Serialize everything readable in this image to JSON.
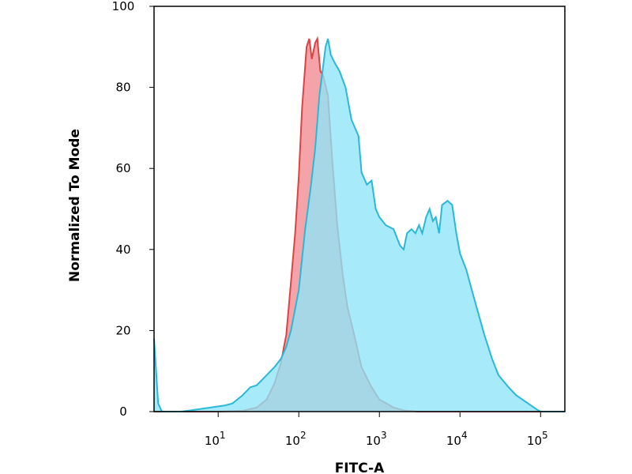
{
  "chart_data": {
    "type": "area",
    "title": "",
    "xlabel": "FITC-A",
    "ylabel": "Normalized To Mode",
    "xscale": "log",
    "xlim": [
      1.6,
      200000
    ],
    "ylim": [
      0,
      100
    ],
    "yticks": [
      {
        "value": 0,
        "label": "0"
      },
      {
        "value": 20,
        "label": "20"
      },
      {
        "value": 40,
        "label": "40"
      },
      {
        "value": 60,
        "label": "60"
      },
      {
        "value": 80,
        "label": "80"
      },
      {
        "value": 100,
        "label": "100"
      }
    ],
    "xticks": [
      {
        "value": 10,
        "base": "10",
        "exp": "1"
      },
      {
        "value": 100,
        "base": "10",
        "exp": "2"
      },
      {
        "value": 1000,
        "base": "10",
        "exp": "3"
      },
      {
        "value": 10000,
        "base": "10",
        "exp": "4"
      },
      {
        "value": 100000,
        "base": "10",
        "exp": "5"
      }
    ],
    "grid": false,
    "legend": "none",
    "series": [
      {
        "color_fill": "#f4a4a8",
        "color_line": "#d94545",
        "points": [
          [
            1.6,
            0
          ],
          [
            10,
            0
          ],
          [
            20,
            0.2
          ],
          [
            30,
            1
          ],
          [
            40,
            3
          ],
          [
            50,
            7
          ],
          [
            60,
            12
          ],
          [
            70,
            19
          ],
          [
            80,
            32
          ],
          [
            90,
            44
          ],
          [
            100,
            58
          ],
          [
            110,
            75
          ],
          [
            125,
            90
          ],
          [
            135,
            92
          ],
          [
            145,
            87
          ],
          [
            160,
            91
          ],
          [
            170,
            92
          ],
          [
            185,
            84
          ],
          [
            200,
            83
          ],
          [
            230,
            78
          ],
          [
            260,
            62
          ],
          [
            300,
            46
          ],
          [
            350,
            34
          ],
          [
            400,
            26
          ],
          [
            500,
            18
          ],
          [
            600,
            11
          ],
          [
            800,
            6
          ],
          [
            1000,
            3
          ],
          [
            1500,
            1
          ],
          [
            2000,
            0.3
          ],
          [
            3000,
            0
          ],
          [
            200000,
            0
          ]
        ]
      },
      {
        "color_fill": "#8ee6f8",
        "color_line": "#2bb8d6",
        "points": [
          [
            1.6,
            18
          ],
          [
            1.8,
            2
          ],
          [
            2,
            0
          ],
          [
            3.5,
            0
          ],
          [
            5,
            0.4
          ],
          [
            8,
            1
          ],
          [
            12,
            1.5
          ],
          [
            15,
            2
          ],
          [
            20,
            4
          ],
          [
            25,
            6
          ],
          [
            30,
            6.5
          ],
          [
            40,
            9
          ],
          [
            50,
            11
          ],
          [
            60,
            13
          ],
          [
            70,
            16
          ],
          [
            80,
            20
          ],
          [
            100,
            30
          ],
          [
            120,
            45
          ],
          [
            140,
            55
          ],
          [
            160,
            65
          ],
          [
            180,
            78
          ],
          [
            200,
            85
          ],
          [
            215,
            90
          ],
          [
            230,
            92
          ],
          [
            250,
            88
          ],
          [
            280,
            86
          ],
          [
            320,
            84
          ],
          [
            380,
            80
          ],
          [
            450,
            72
          ],
          [
            550,
            68
          ],
          [
            600,
            59
          ],
          [
            700,
            56
          ],
          [
            800,
            57
          ],
          [
            900,
            50
          ],
          [
            1000,
            48
          ],
          [
            1200,
            46
          ],
          [
            1500,
            45
          ],
          [
            1800,
            41
          ],
          [
            2000,
            40
          ],
          [
            2200,
            44
          ],
          [
            2500,
            45
          ],
          [
            2800,
            44
          ],
          [
            3100,
            46
          ],
          [
            3400,
            44
          ],
          [
            3800,
            48
          ],
          [
            4200,
            50
          ],
          [
            4600,
            47
          ],
          [
            5000,
            48
          ],
          [
            5500,
            44
          ],
          [
            6000,
            51
          ],
          [
            7000,
            52
          ],
          [
            8000,
            51
          ],
          [
            9000,
            44
          ],
          [
            10000,
            39
          ],
          [
            12000,
            35
          ],
          [
            14000,
            30
          ],
          [
            17000,
            24
          ],
          [
            20000,
            19
          ],
          [
            25000,
            13
          ],
          [
            30000,
            9
          ],
          [
            40000,
            6
          ],
          [
            50000,
            4
          ],
          [
            70000,
            2
          ],
          [
            90000,
            0.5
          ],
          [
            100000,
            0
          ],
          [
            200000,
            0
          ]
        ]
      }
    ]
  }
}
